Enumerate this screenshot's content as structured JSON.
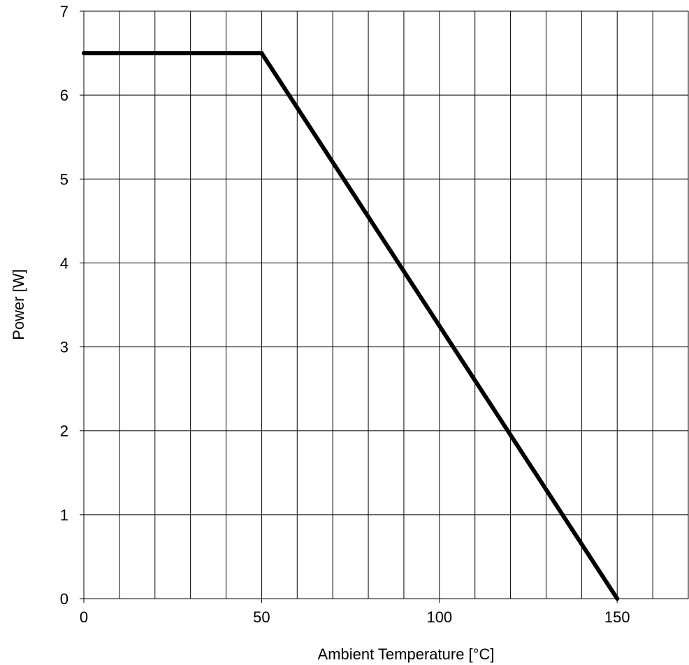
{
  "chart_data": {
    "type": "line",
    "title": "",
    "xlabel": "Ambient Temperature [°C]",
    "ylabel": "Power [W]",
    "xlim": [
      0,
      170
    ],
    "ylim": [
      0,
      7
    ],
    "x_gridlines": [
      0,
      10,
      20,
      30,
      40,
      50,
      60,
      70,
      80,
      90,
      100,
      110,
      120,
      130,
      140,
      150,
      160,
      170
    ],
    "y_gridlines": [
      0,
      1,
      2,
      3,
      4,
      5,
      6,
      7
    ],
    "x_ticks": [
      {
        "value": 0,
        "label": "0"
      },
      {
        "value": 50,
        "label": "50"
      },
      {
        "value": 100,
        "label": "100"
      },
      {
        "value": 150,
        "label": "150"
      }
    ],
    "y_ticks": [
      {
        "value": 0,
        "label": "0"
      },
      {
        "value": 1,
        "label": "1"
      },
      {
        "value": 2,
        "label": "2"
      },
      {
        "value": 3,
        "label": "3"
      },
      {
        "value": 4,
        "label": "4"
      },
      {
        "value": 5,
        "label": "5"
      },
      {
        "value": 6,
        "label": "6"
      },
      {
        "value": 7,
        "label": "7"
      }
    ],
    "grid": true,
    "legend": "none",
    "series": [
      {
        "color": "#000000",
        "points": [
          {
            "x": 0,
            "y": 6.5
          },
          {
            "x": 50,
            "y": 6.5
          },
          {
            "x": 150,
            "y": 0
          }
        ]
      }
    ]
  }
}
